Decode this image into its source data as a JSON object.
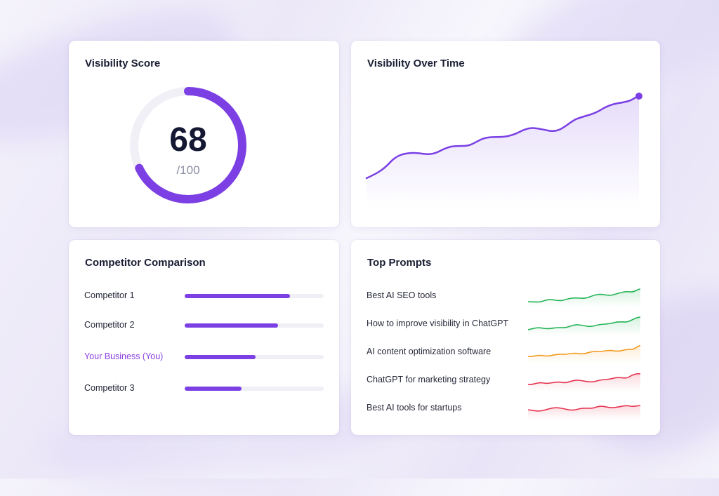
{
  "colors": {
    "accent": "#7b3fe4",
    "track": "#f0eff6",
    "you_label": "#8b3fe0",
    "spark_green": "#22b455",
    "spark_orange": "#f29a1e",
    "spark_red": "#e5334f"
  },
  "visibility_score": {
    "title": "Visibility Score",
    "value": "68",
    "max": "/100",
    "fraction": 0.68
  },
  "visibility_over_time": {
    "title": "Visibility Over Time"
  },
  "competitor_comparison": {
    "title": "Competitor Comparison",
    "rows": [
      {
        "label": "Competitor 1",
        "value": 0.76,
        "is_you": false
      },
      {
        "label": "Competitor 2",
        "value": 0.67,
        "is_you": false
      },
      {
        "label": "Your Business (You)",
        "value": 0.51,
        "is_you": true
      },
      {
        "label": "Competitor 3",
        "value": 0.41,
        "is_you": false
      }
    ]
  },
  "top_prompts": {
    "title": "Top Prompts",
    "rows": [
      {
        "label": "Best AI SEO tools",
        "trend": "green"
      },
      {
        "label": "How to improve visibility in ChatGPT",
        "trend": "green"
      },
      {
        "label": "AI content optimization software",
        "trend": "orange"
      },
      {
        "label": "ChatGPT for marketing strategy",
        "trend": "red"
      },
      {
        "label": "Best AI tools for startups",
        "trend": "red"
      }
    ]
  }
}
